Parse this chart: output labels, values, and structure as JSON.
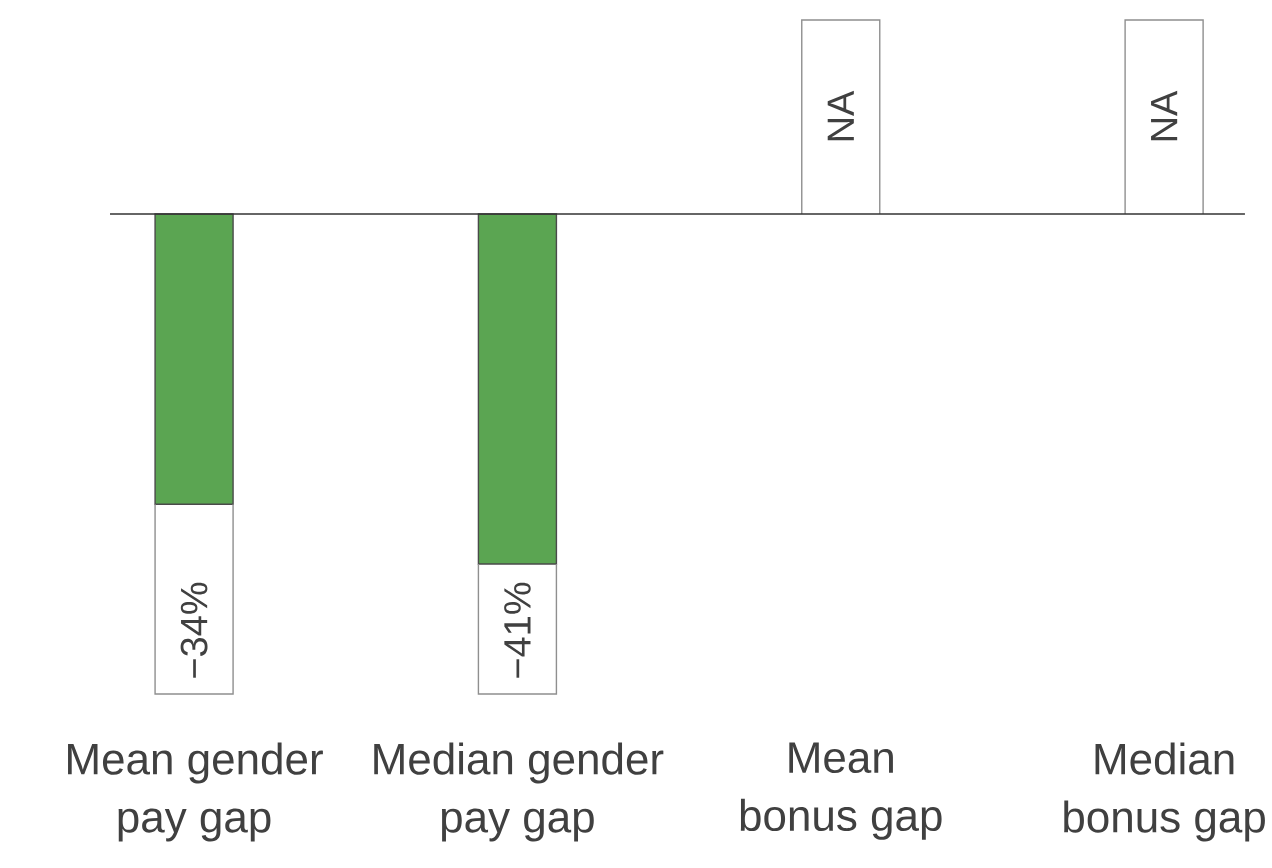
{
  "chart_data": {
    "type": "bar",
    "categories": [
      "Mean gender pay gap",
      "Median gender pay gap",
      "Mean bonus gap",
      "Median bonus gap"
    ],
    "values": [
      -34,
      -41,
      null,
      null
    ],
    "value_labels": [
      "−34%",
      "−41%",
      "NA",
      "NA"
    ],
    "color": "#5ba552"
  }
}
